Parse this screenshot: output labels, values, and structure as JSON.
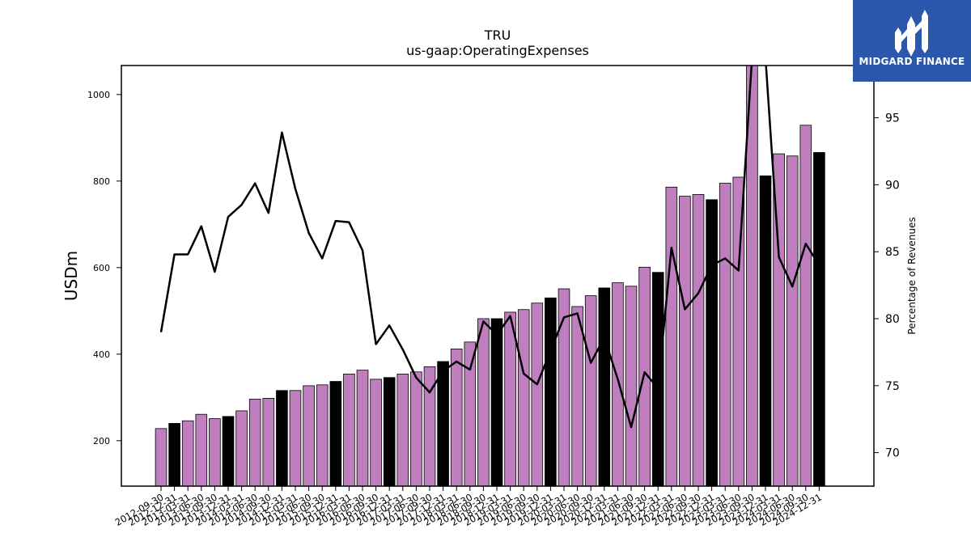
{
  "chart_data": {
    "type": "bar",
    "title": "TRU",
    "subtitle": "us-gaap:OperatingExpenses",
    "ylabel": "USDm",
    "ylabel_right": "Percentage of Revenues",
    "ylim": [
      95,
      1067
    ],
    "ylim_right": [
      67.5,
      98.9
    ],
    "yticks": [
      200,
      400,
      600,
      800,
      1000
    ],
    "yticks_right": [
      70,
      75,
      80,
      85,
      90,
      95
    ],
    "bar_color_quarter": "#bf7fbf",
    "bar_color_year_end": "#000000",
    "line_color": "#000000",
    "categories": [
      "2012-09-30",
      "2012-12-31",
      "2013-03-31",
      "2013-06-30",
      "2013-09-30",
      "2013-12-31",
      "2014-03-31",
      "2014-06-30",
      "2014-09-30",
      "2014-12-31",
      "2015-03-31",
      "2015-06-30",
      "2015-09-30",
      "2015-12-31",
      "2016-03-31",
      "2016-06-30",
      "2016-09-30",
      "2016-12-31",
      "2017-03-31",
      "2017-06-30",
      "2017-09-30",
      "2017-12-31",
      "2018-03-31",
      "2018-06-30",
      "2018-09-30",
      "2018-12-31",
      "2019-03-31",
      "2019-06-30",
      "2019-09-30",
      "2019-12-31",
      "2020-03-31",
      "2020-06-30",
      "2020-09-30",
      "2020-12-31",
      "2021-03-31",
      "2021-06-30",
      "2021-09-30",
      "2021-12-31",
      "2022-03-31",
      "2022-06-30",
      "2022-09-30",
      "2022-12-31",
      "2023-03-31",
      "2023-06-30",
      "2023-09-30",
      "2023-12-31",
      "2024-03-31",
      "2024-06-30",
      "2024-09-30",
      "2024-12-31"
    ],
    "series": [
      {
        "type": "bar",
        "axis": "left",
        "values": [
          228,
          240,
          246,
          261,
          251,
          256,
          269,
          296,
          298,
          316,
          316,
          327,
          329,
          337,
          354,
          363,
          342,
          346,
          354,
          359,
          371,
          383,
          412,
          428,
          482,
          482,
          497,
          503,
          518,
          530,
          551,
          510,
          535,
          553,
          565,
          557,
          601,
          589,
          786,
          765,
          769,
          757,
          795,
          809,
          1067,
          812,
          863,
          858,
          929,
          866
        ]
      },
      {
        "type": "line",
        "axis": "right",
        "values": [
          79.0,
          84.8,
          84.8,
          86.9,
          83.5,
          87.6,
          88.5,
          90.1,
          87.9,
          93.9,
          89.7,
          86.4,
          84.5,
          87.3,
          87.2,
          85.1,
          78.1,
          79.5,
          77.7,
          75.6,
          74.5,
          76.1,
          76.8,
          76.2,
          79.8,
          78.8,
          80.2,
          75.9,
          75.1,
          77.6,
          80.1,
          80.4,
          76.7,
          78.6,
          75.5,
          71.9,
          76.0,
          74.8,
          85.3,
          80.7,
          81.9,
          84.0,
          84.5,
          83.6,
          99.5,
          99.5,
          84.6,
          82.4,
          85.6,
          84.0
        ]
      }
    ]
  },
  "logo": {
    "text": "MIDGARD FINANCE"
  }
}
